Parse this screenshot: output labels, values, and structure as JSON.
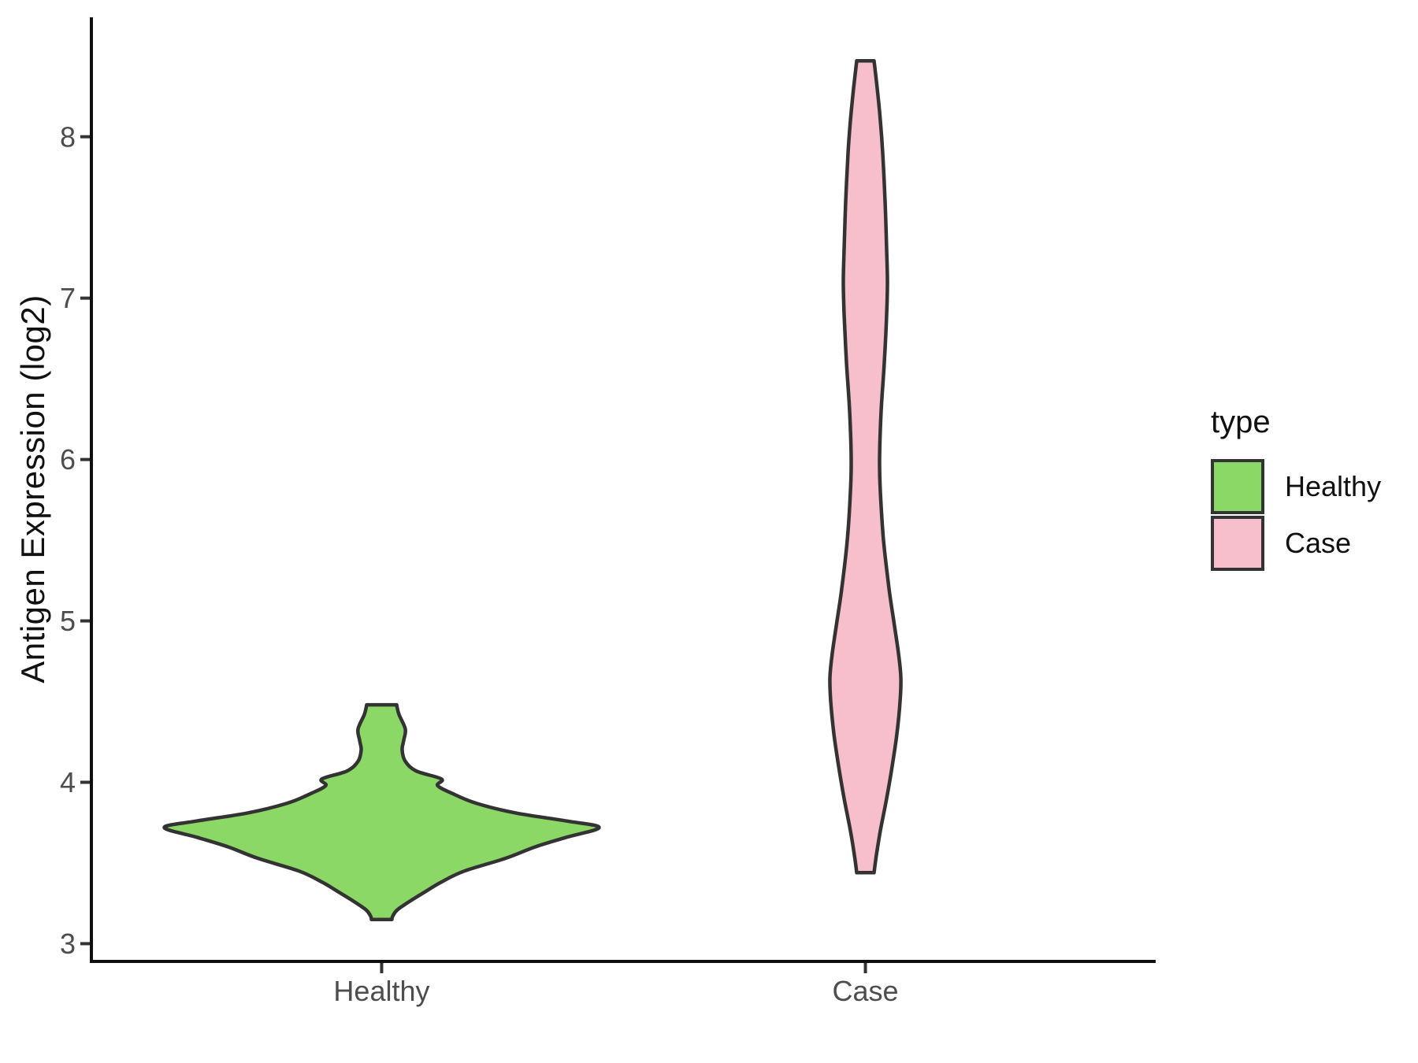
{
  "figure": {
    "background": "#FFFFFF",
    "panel_border": "none",
    "gridlines": "off"
  },
  "chart_data": {
    "type": "violin",
    "title": "",
    "xlabel": "",
    "ylabel": "Antigen Expression (log2)",
    "categories": [
      "Healthy",
      "Case"
    ],
    "ylim": [
      2.89,
      8.74
    ],
    "yticks": [
      3,
      4,
      5,
      6,
      7,
      8
    ],
    "grid": "off",
    "axis_colors": {
      "axis_line": "#0f0f0f",
      "tick_mark": "#333333",
      "tick_label": "#4d4d4d",
      "axis_title": "#111111"
    },
    "legend": {
      "title": "type",
      "position": "right",
      "entries": [
        {
          "label": "Healthy",
          "fill": "#8CD867"
        },
        {
          "label": "Case",
          "fill": "#F7BECB"
        }
      ]
    },
    "series": [
      {
        "name": "Healthy",
        "fill": "#8CD867",
        "outline": "#333333",
        "value_range": [
          3.15,
          4.48
        ],
        "widest_at_value": 3.72,
        "profile_value_halfwidth": [
          [
            4.48,
            19
          ],
          [
            4.42,
            22
          ],
          [
            4.33,
            30
          ],
          [
            4.26,
            28
          ],
          [
            4.2,
            26
          ],
          [
            4.13,
            30
          ],
          [
            4.07,
            44
          ],
          [
            4.02,
            76
          ],
          [
            3.98,
            71
          ],
          [
            3.93,
            90
          ],
          [
            3.87,
            120
          ],
          [
            3.81,
            170
          ],
          [
            3.76,
            235
          ],
          [
            3.72,
            276
          ],
          [
            3.66,
            235
          ],
          [
            3.6,
            195
          ],
          [
            3.53,
            158
          ],
          [
            3.45,
            105
          ],
          [
            3.38,
            75
          ],
          [
            3.33,
            58
          ],
          [
            3.27,
            38
          ],
          [
            3.21,
            20
          ],
          [
            3.17,
            14
          ],
          [
            3.15,
            13
          ]
        ]
      },
      {
        "name": "Case",
        "fill": "#F7BECB",
        "outline": "#333333",
        "value_range": [
          3.44,
          8.47
        ],
        "widest_at_value": 4.65,
        "profile_value_halfwidth": [
          [
            8.47,
            11
          ],
          [
            8.3,
            15
          ],
          [
            8.1,
            19
          ],
          [
            7.9,
            22
          ],
          [
            7.6,
            25
          ],
          [
            7.3,
            27
          ],
          [
            7.1,
            28
          ],
          [
            6.9,
            27
          ],
          [
            6.6,
            24
          ],
          [
            6.3,
            20
          ],
          [
            6.0,
            18
          ],
          [
            5.8,
            19
          ],
          [
            5.5,
            23
          ],
          [
            5.2,
            30
          ],
          [
            5.0,
            36
          ],
          [
            4.8,
            42
          ],
          [
            4.65,
            45
          ],
          [
            4.5,
            44
          ],
          [
            4.3,
            40
          ],
          [
            4.1,
            34
          ],
          [
            3.9,
            27
          ],
          [
            3.7,
            19
          ],
          [
            3.55,
            14
          ],
          [
            3.44,
            11
          ]
        ]
      }
    ]
  }
}
